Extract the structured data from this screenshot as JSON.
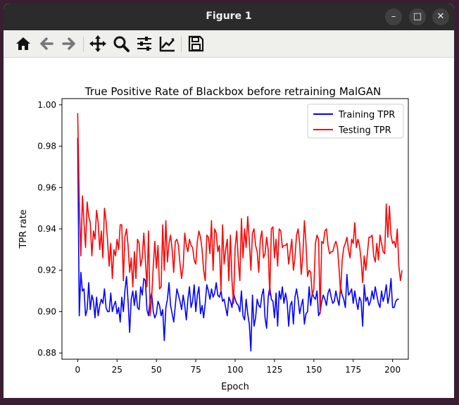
{
  "window": {
    "title": "Figure 1",
    "buttons": {
      "minimize": "–",
      "maximize": "□",
      "close": "✕"
    }
  },
  "toolbar": {
    "items": [
      "home-icon",
      "back-icon",
      "forward-icon",
      "pan-icon",
      "zoom-icon",
      "configure-icon",
      "edit-axis-icon",
      "save-icon"
    ]
  },
  "chart_data": {
    "type": "line",
    "title": "True Positive Rate of Blackbox before retraining MalGAN",
    "xlabel": "Epoch",
    "ylabel": "TPR rate",
    "xlim": [
      -10,
      210
    ],
    "ylim": [
      0.877,
      1.003
    ],
    "xticks": [
      0,
      25,
      50,
      75,
      100,
      125,
      150,
      175,
      200
    ],
    "yticks": [
      0.88,
      0.9,
      0.92,
      0.94,
      0.96,
      0.98,
      1.0
    ],
    "xtick_labels": [
      "0",
      "25",
      "50",
      "75",
      "100",
      "125",
      "150",
      "175",
      "200"
    ],
    "ytick_labels": [
      "0.88",
      "0.90",
      "0.92",
      "0.94",
      "0.96",
      "0.98",
      "1.00"
    ],
    "legend": {
      "position": "top-right",
      "entries": [
        "Training TPR",
        "Testing TPR"
      ]
    },
    "grid": false,
    "series": [
      {
        "name": "Training TPR",
        "color": "#0000ff",
        "x_start": 0,
        "x_step": 1,
        "values": [
          0.984,
          0.898,
          0.919,
          0.91,
          0.911,
          0.898,
          0.901,
          0.914,
          0.901,
          0.908,
          0.905,
          0.897,
          0.907,
          0.898,
          0.903,
          0.906,
          0.904,
          0.911,
          0.902,
          0.9,
          0.9,
          0.909,
          0.9,
          0.903,
          0.905,
          0.899,
          0.902,
          0.895,
          0.907,
          0.9,
          0.91,
          0.917,
          0.905,
          0.89,
          0.906,
          0.91,
          0.903,
          0.91,
          0.902,
          0.901,
          0.912,
          0.908,
          0.916,
          0.915,
          0.901,
          0.898,
          0.906,
          0.909,
          0.9,
          0.897,
          0.899,
          0.905,
          0.903,
          0.898,
          0.901,
          0.886,
          0.902,
          0.906,
          0.914,
          0.903,
          0.899,
          0.895,
          0.903,
          0.911,
          0.908,
          0.905,
          0.901,
          0.908,
          0.903,
          0.896,
          0.906,
          0.912,
          0.902,
          0.905,
          0.913,
          0.9,
          0.908,
          0.912,
          0.899,
          0.903,
          0.897,
          0.904,
          0.913,
          0.91,
          0.906,
          0.911,
          0.907,
          0.909,
          0.914,
          0.908,
          0.907,
          0.91,
          0.905,
          0.906,
          0.902,
          0.898,
          0.907,
          0.905,
          0.902,
          0.909,
          0.906,
          0.904,
          0.903,
          0.9,
          0.91,
          0.898,
          0.896,
          0.906,
          0.899,
          0.894,
          0.881,
          0.908,
          0.893,
          0.897,
          0.906,
          0.903,
          0.902,
          0.908,
          0.911,
          0.897,
          0.892,
          0.907,
          0.912,
          0.906,
          0.905,
          0.897,
          0.909,
          0.893,
          0.91,
          0.906,
          0.912,
          0.904,
          0.909,
          0.905,
          0.893,
          0.903,
          0.905,
          0.894,
          0.907,
          0.911,
          0.906,
          0.899,
          0.903,
          0.906,
          0.894,
          0.899,
          0.9,
          0.912,
          0.903,
          0.909,
          0.907,
          0.906,
          0.91,
          0.898,
          0.9,
          0.905,
          0.908,
          0.906,
          0.903,
          0.909,
          0.911,
          0.907,
          0.904,
          0.905,
          0.91,
          0.906,
          0.903,
          0.912,
          0.908,
          0.906,
          0.902,
          0.918,
          0.908,
          0.909,
          0.911,
          0.904,
          0.91,
          0.905,
          0.901,
          0.907,
          0.905,
          0.893,
          0.913,
          0.905,
          0.907,
          0.903,
          0.905,
          0.91,
          0.906,
          0.912,
          0.908,
          0.904,
          0.902,
          0.91,
          0.905,
          0.908,
          0.913,
          0.904,
          0.908,
          0.916,
          0.902,
          0.902,
          0.905,
          0.906,
          0.906
        ]
      },
      {
        "name": "Testing TPR",
        "color": "#ff0000",
        "x_start": 0,
        "x_step": 1,
        "values": [
          0.996,
          0.954,
          0.927,
          0.956,
          0.943,
          0.931,
          0.953,
          0.946,
          0.943,
          0.927,
          0.939,
          0.935,
          0.949,
          0.943,
          0.93,
          0.939,
          0.926,
          0.95,
          0.944,
          0.934,
          0.922,
          0.933,
          0.916,
          0.93,
          0.927,
          0.935,
          0.93,
          0.942,
          0.942,
          0.915,
          0.936,
          0.94,
          0.932,
          0.919,
          0.926,
          0.912,
          0.929,
          0.916,
          0.935,
          0.933,
          0.922,
          0.926,
          0.938,
          0.925,
          0.912,
          0.939,
          0.898,
          0.907,
          0.922,
          0.934,
          0.921,
          0.932,
          0.911,
          0.912,
          0.942,
          0.92,
          0.944,
          0.924,
          0.933,
          0.937,
          0.93,
          0.919,
          0.934,
          0.935,
          0.932,
          0.923,
          0.916,
          0.922,
          0.938,
          0.932,
          0.929,
          0.935,
          0.932,
          0.931,
          0.925,
          0.923,
          0.934,
          0.939,
          0.936,
          0.93,
          0.92,
          0.915,
          0.937,
          0.936,
          0.928,
          0.944,
          0.92,
          0.94,
          0.938,
          0.929,
          0.932,
          0.91,
          0.942,
          0.923,
          0.93,
          0.935,
          0.915,
          0.937,
          0.915,
          0.904,
          0.931,
          0.939,
          0.925,
          0.915,
          0.945,
          0.926,
          0.94,
          0.931,
          0.946,
          0.934,
          0.92,
          0.938,
          0.94,
          0.932,
          0.929,
          0.919,
          0.935,
          0.939,
          0.926,
          0.928,
          0.936,
          0.93,
          0.908,
          0.94,
          0.941,
          0.926,
          0.935,
          0.922,
          0.94,
          0.939,
          0.931,
          0.932,
          0.932,
          0.933,
          0.923,
          0.929,
          0.935,
          0.92,
          0.926,
          0.937,
          0.94,
          0.933,
          0.918,
          0.927,
          0.944,
          0.933,
          0.917,
          0.92,
          0.919,
          0.908,
          0.911,
          0.933,
          0.937,
          0.935,
          0.899,
          0.934,
          0.933,
          0.939,
          0.94,
          0.932,
          0.928,
          0.929,
          0.929,
          0.932,
          0.934,
          0.931,
          0.921,
          0.909,
          0.925,
          0.931,
          0.933,
          0.936,
          0.93,
          0.926,
          0.935,
          0.933,
          0.943,
          0.931,
          0.935,
          0.932,
          0.925,
          0.914,
          0.927,
          0.92,
          0.928,
          0.936,
          0.936,
          0.937,
          0.927,
          0.924,
          0.933,
          0.925,
          0.937,
          0.933,
          0.929,
          0.928,
          0.952,
          0.936,
          0.951,
          0.937,
          0.933,
          0.934,
          0.931,
          0.94,
          0.922,
          0.915,
          0.92
        ]
      }
    ]
  }
}
